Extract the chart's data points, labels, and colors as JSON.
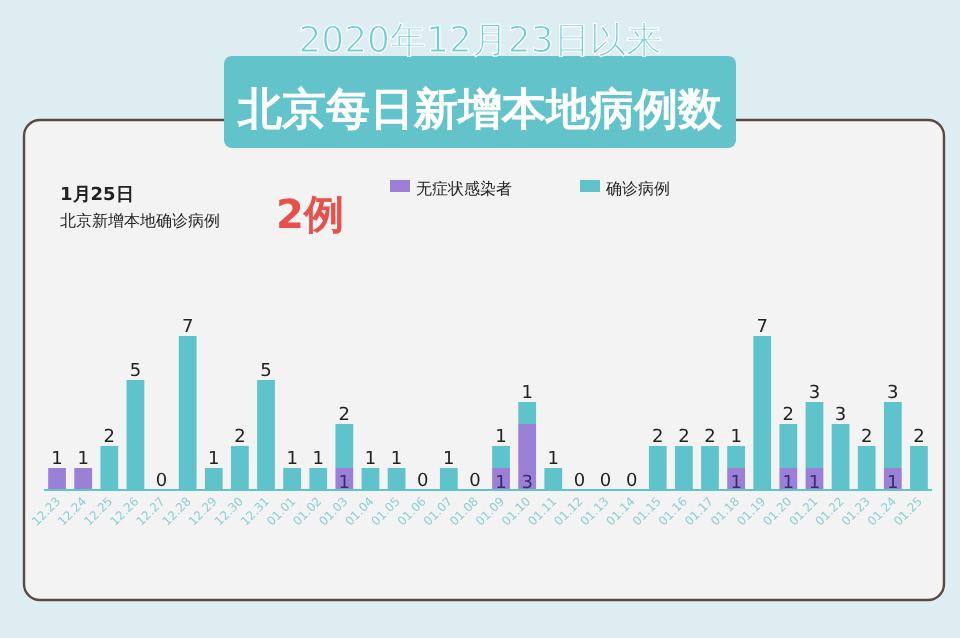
{
  "chart_data": {
    "type": "bar",
    "stacked": true,
    "title": "2020年12月23日以来",
    "subtitle": "北京每日新增本地病例数",
    "annotations": [
      "1月25日",
      "北京新增本地确诊病例",
      "2例"
    ],
    "legend": "top",
    "categories": [
      "12.23",
      "12.24",
      "12.25",
      "12.26",
      "12.27",
      "12.28",
      "12.29",
      "12.30",
      "12.31",
      "01.01",
      "01.02",
      "01.03",
      "01.04",
      "01.05",
      "01.06",
      "01.07",
      "01.08",
      "01.09",
      "01.10",
      "01.11",
      "01.12",
      "01.13",
      "01.14",
      "01.15",
      "01.16",
      "01.17",
      "01.18",
      "01.19",
      "01.20",
      "01.21",
      "01.22",
      "01.23",
      "01.24",
      "01.25"
    ],
    "series": [
      {
        "name": "无症状感染者",
        "color": "#9b80d8",
        "values": [
          1,
          1,
          0,
          0,
          0,
          0,
          0,
          0,
          0,
          0,
          0,
          1,
          0,
          0,
          0,
          0,
          0,
          1,
          3,
          0,
          0,
          0,
          0,
          0,
          0,
          0,
          1,
          0,
          1,
          1,
          0,
          0,
          1,
          0
        ],
        "value_labels": [
          "1",
          "1",
          null,
          null,
          null,
          null,
          null,
          null,
          null,
          null,
          null,
          "1",
          null,
          null,
          null,
          null,
          null,
          "1",
          "3",
          null,
          null,
          null,
          null,
          null,
          null,
          null,
          "1",
          null,
          "1",
          "1",
          null,
          null,
          "1",
          null
        ]
      },
      {
        "name": "确诊病例",
        "color": "#5ec3cb",
        "values": [
          0,
          0,
          2,
          5,
          0,
          7,
          1,
          2,
          5,
          1,
          1,
          2,
          1,
          1,
          0,
          1,
          0,
          1,
          1,
          1,
          0,
          0,
          0,
          2,
          2,
          2,
          1,
          7,
          2,
          3,
          3,
          2,
          3,
          2
        ],
        "value_labels": [
          null,
          null,
          "2",
          "5",
          "0",
          "7",
          "1",
          "2",
          "5",
          "1",
          "1",
          "2",
          "1",
          "1",
          "0",
          "1",
          "0",
          "1",
          "1",
          "1",
          "0",
          "0",
          "0",
          "2",
          "2",
          "2",
          "1",
          "7",
          "2",
          "3",
          "3",
          "2",
          "3",
          "2"
        ]
      }
    ]
  }
}
